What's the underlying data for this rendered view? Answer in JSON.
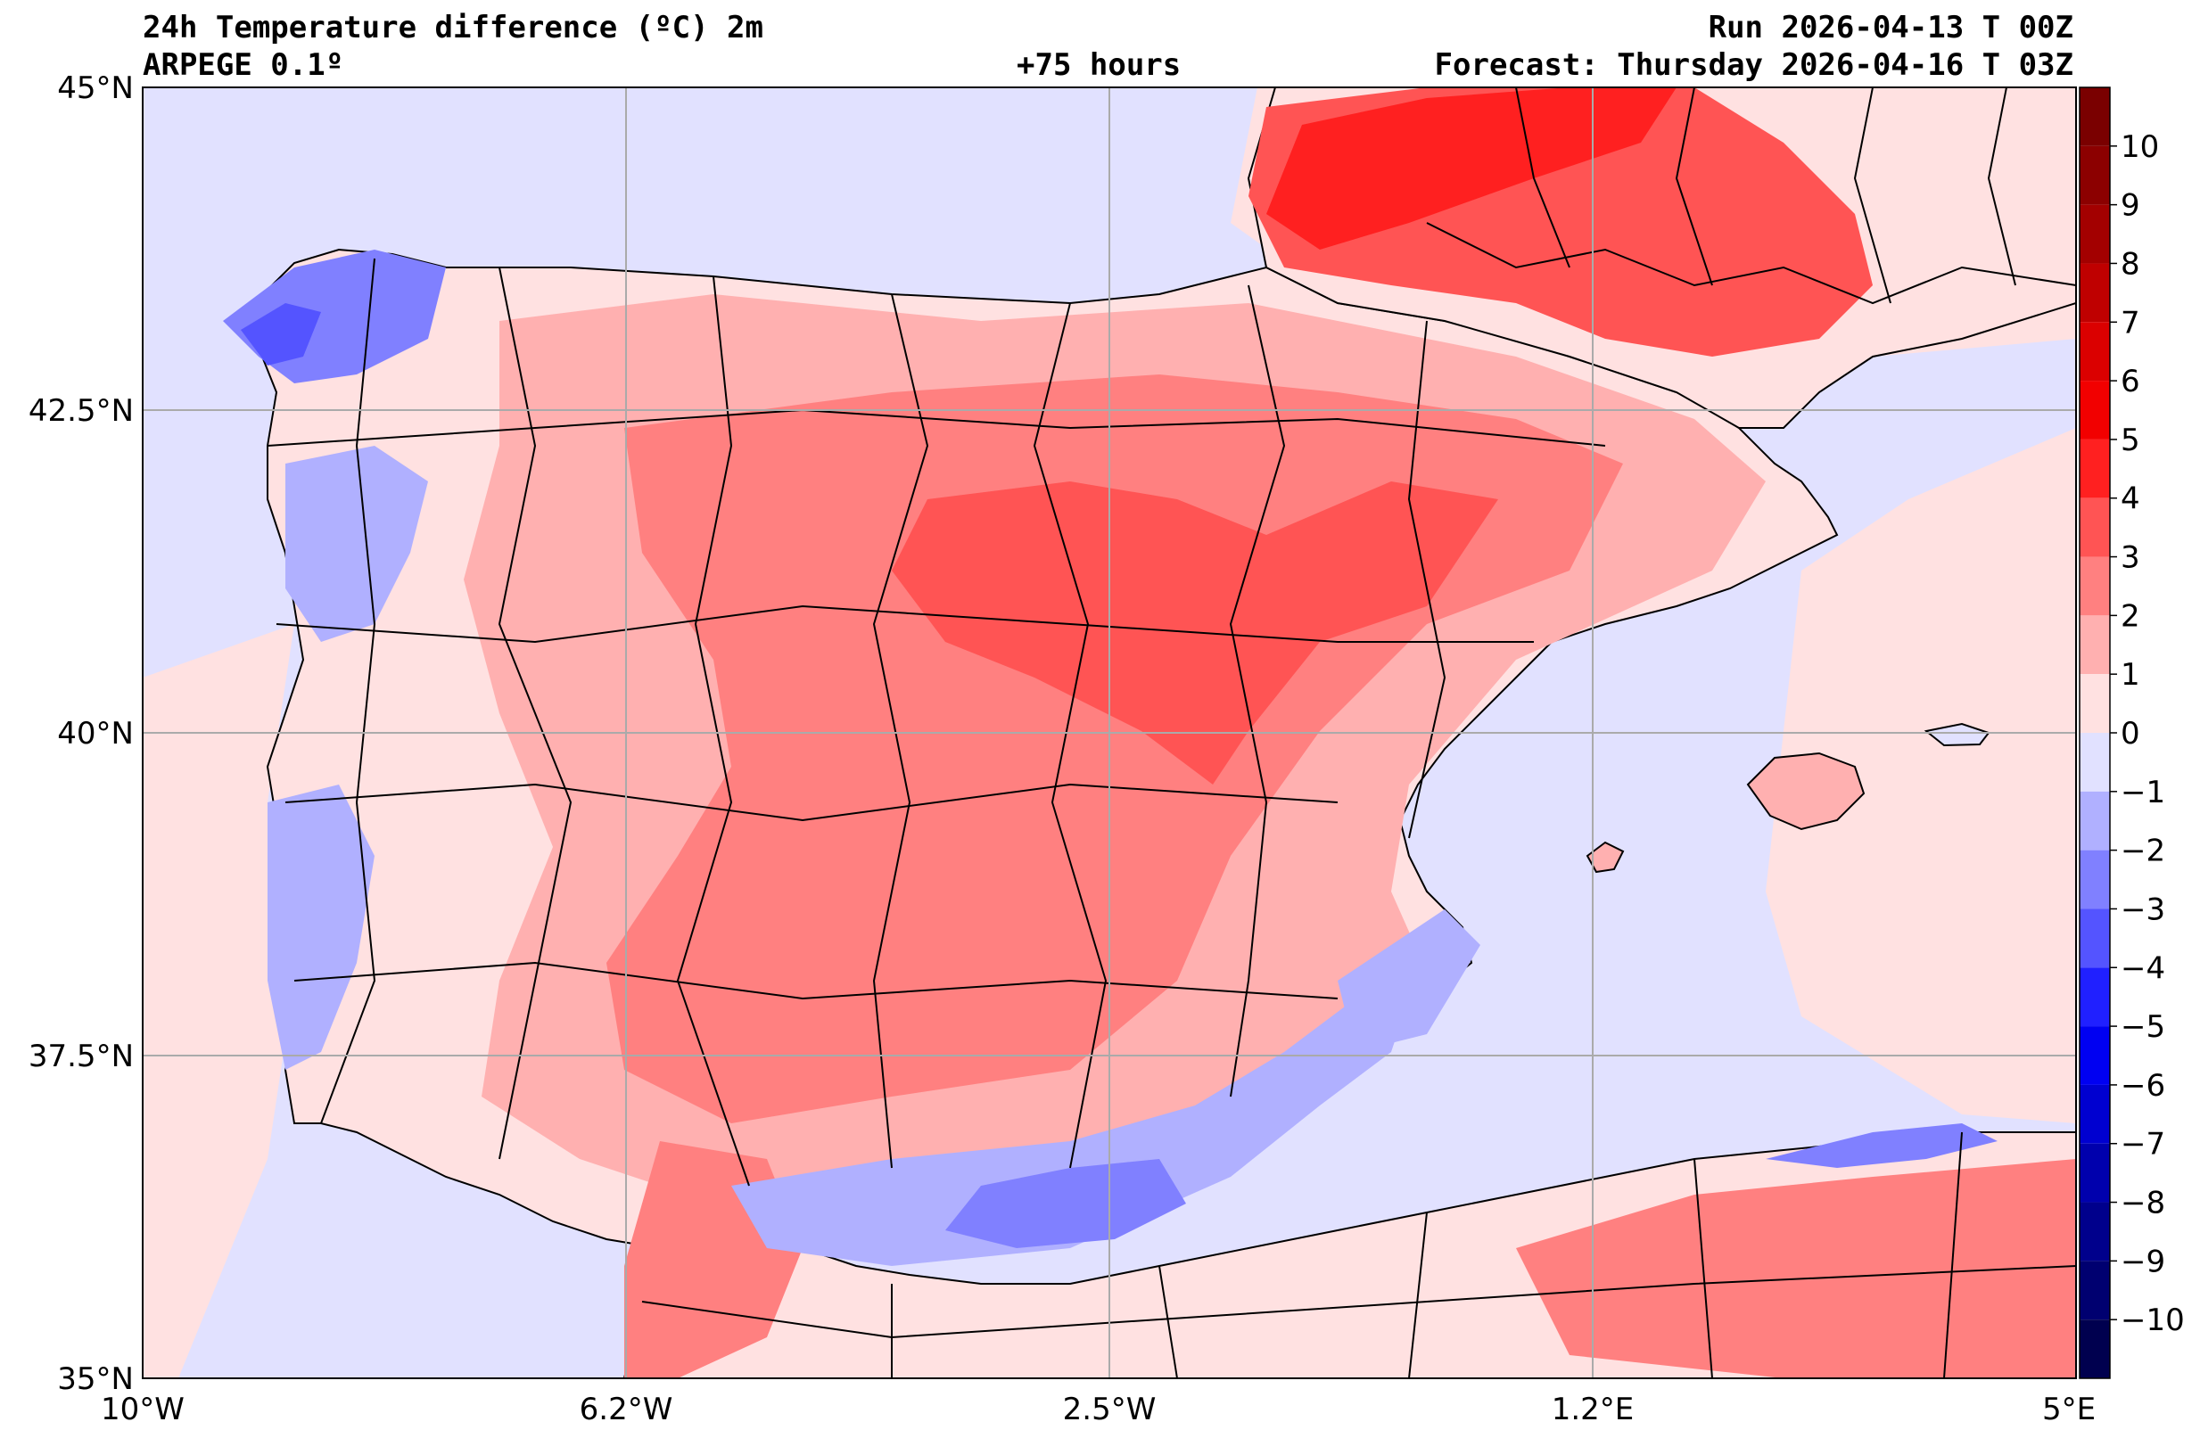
{
  "header": {
    "title": "24h Temperature difference (ºC) 2m",
    "model": "ARPEGE 0.1º",
    "lead_time": "+75 hours",
    "run": "Run 2026-04-13 T 00Z",
    "forecast": "Forecast: Thursday 2026-04-16 T 03Z"
  },
  "axes": {
    "lat_labels": [
      "45°N",
      "42.5°N",
      "40°N",
      "37.5°N",
      "35°N"
    ],
    "lon_labels": [
      "10°W",
      "6.2°W",
      "2.5°W",
      "1.2°E",
      "5°E"
    ],
    "lon_values": [
      -10,
      -6.25,
      -2.5,
      1.25,
      5
    ],
    "lat_values": [
      45,
      42.5,
      40,
      37.5,
      35
    ],
    "extent": {
      "lon_min": -10,
      "lon_max": 5,
      "lat_min": 35,
      "lat_max": 45
    }
  },
  "colorbar": {
    "labels": [
      "10",
      "9",
      "8",
      "7",
      "6",
      "5",
      "4",
      "3",
      "2",
      "1",
      "0",
      "−1",
      "−2",
      "−3",
      "−4",
      "−5",
      "−6",
      "−7",
      "−8",
      "−9",
      "−10"
    ],
    "bins": [
      {
        "range": [
          10,
          11
        ],
        "color": "#7a0000"
      },
      {
        "range": [
          9,
          10
        ],
        "color": "#8c0000"
      },
      {
        "range": [
          8,
          9
        ],
        "color": "#a30000"
      },
      {
        "range": [
          7,
          8
        ],
        "color": "#bf0000"
      },
      {
        "range": [
          6,
          7
        ],
        "color": "#db0000"
      },
      {
        "range": [
          5,
          6
        ],
        "color": "#f20000"
      },
      {
        "range": [
          4,
          5
        ],
        "color": "#ff2020"
      },
      {
        "range": [
          3,
          4
        ],
        "color": "#ff5454"
      },
      {
        "range": [
          2,
          3
        ],
        "color": "#ff8080"
      },
      {
        "range": [
          1,
          2
        ],
        "color": "#ffb0b0"
      },
      {
        "range": [
          0,
          1
        ],
        "color": "#ffe1e1"
      },
      {
        "range": [
          -1,
          0
        ],
        "color": "#e1e1ff"
      },
      {
        "range": [
          -2,
          -1
        ],
        "color": "#b0b0ff"
      },
      {
        "range": [
          -3,
          -2
        ],
        "color": "#8080ff"
      },
      {
        "range": [
          -4,
          -3
        ],
        "color": "#5454ff"
      },
      {
        "range": [
          -5,
          -4
        ],
        "color": "#2020ff"
      },
      {
        "range": [
          -6,
          -5
        ],
        "color": "#0000f2"
      },
      {
        "range": [
          -7,
          -6
        ],
        "color": "#0000d0"
      },
      {
        "range": [
          -8,
          -7
        ],
        "color": "#0000ad"
      },
      {
        "range": [
          -9,
          -8
        ],
        "color": "#00008c"
      },
      {
        "range": [
          -10,
          -9
        ],
        "color": "#000070"
      },
      {
        "range": [
          -11,
          -10
        ],
        "color": "#00004f"
      }
    ]
  },
  "colors": {
    "ocean": "#e1e1ff",
    "land_base": "#ffe1e1",
    "warm1": "#ffb0b0",
    "warm2": "#ff8080",
    "warm3": "#ff5454",
    "warm4": "#ff2020",
    "cool1": "#b0b0ff",
    "cool2": "#8080ff",
    "cool3": "#5454ff",
    "grid": "#aaaaaa",
    "border": "#000000"
  }
}
